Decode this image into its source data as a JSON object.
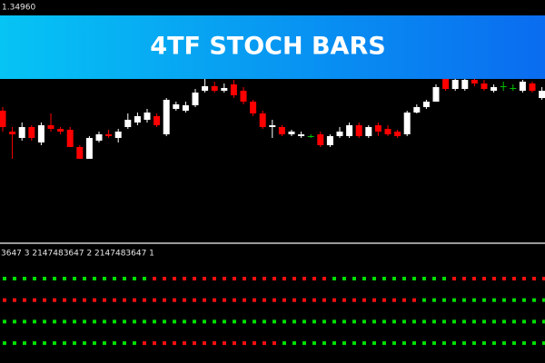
{
  "price_label": "1.34960",
  "indicator_label": "3647 3 2147483647 2 2147483647 1",
  "chart_data": [
    {
      "type": "candlestick",
      "title": "4TF STOCH BARS",
      "ylim": [
        1.3394,
        1.35
      ],
      "up_color": "#ffffff",
      "down_color": "#ff0000",
      "doji_color": "#00c000",
      "open": [
        1.34512,
        1.3442,
        1.34392,
        1.3444,
        1.34372,
        1.34448,
        1.34432,
        1.34428,
        1.34352,
        1.343,
        1.3438,
        1.34408,
        1.34392,
        1.3444,
        1.3446,
        1.34472,
        1.34488,
        1.34408,
        1.3452,
        1.34512,
        1.34536,
        1.346,
        1.3462,
        1.346,
        1.34628,
        1.346,
        1.34552,
        1.345,
        1.3444,
        1.3444,
        1.34408,
        1.344,
        1.344,
        1.34408,
        1.3436,
        1.344,
        1.344,
        1.34448,
        1.344,
        1.34448,
        1.34432,
        1.3442,
        1.34408,
        1.34504,
        1.34528,
        1.34552,
        1.34656,
        1.34608,
        1.34608,
        1.34648,
        1.34632,
        1.346,
        1.3462,
        1.34612,
        1.346,
        1.34632,
        1.34568
      ],
      "high": [
        1.34528,
        1.3444,
        1.3446,
        1.34448,
        1.3446,
        1.345,
        1.3444,
        1.3444,
        1.3436,
        1.344,
        1.3442,
        1.34428,
        1.34432,
        1.345,
        1.34504,
        1.3452,
        1.345,
        1.34568,
        1.34552,
        1.34552,
        1.34608,
        1.34656,
        1.3464,
        1.34632,
        1.34648,
        1.34616,
        1.3456,
        1.34512,
        1.34472,
        1.34448,
        1.34428,
        1.3442,
        1.34408,
        1.3442,
        1.34408,
        1.3444,
        1.3446,
        1.3446,
        1.34448,
        1.3446,
        1.34448,
        1.34428,
        1.34512,
        1.3454,
        1.3456,
        1.34628,
        1.34656,
        1.34656,
        1.34656,
        1.34656,
        1.34648,
        1.34628,
        1.3464,
        1.34628,
        1.34648,
        1.3464,
        1.34616
      ],
      "low": [
        1.3442,
        1.343,
        1.3438,
        1.3438,
        1.3436,
        1.3442,
        1.34408,
        1.34352,
        1.343,
        1.343,
        1.34372,
        1.34392,
        1.34372,
        1.34432,
        1.34448,
        1.3446,
        1.3444,
        1.344,
        1.34512,
        1.34504,
        1.34528,
        1.34592,
        1.34592,
        1.34592,
        1.34568,
        1.3454,
        1.34488,
        1.34432,
        1.34392,
        1.344,
        1.344,
        1.34392,
        1.34392,
        1.34352,
        1.34352,
        1.34392,
        1.34392,
        1.34392,
        1.34392,
        1.344,
        1.344,
        1.34392,
        1.344,
        1.345,
        1.3452,
        1.34552,
        1.346,
        1.346,
        1.346,
        1.3462,
        1.346,
        1.34592,
        1.346,
        1.346,
        1.34592,
        1.34592,
        1.3456
      ],
      "close": [
        1.3444,
        1.34408,
        1.3444,
        1.34392,
        1.34448,
        1.34432,
        1.3442,
        1.34352,
        1.343,
        1.34392,
        1.34408,
        1.344,
        1.3442,
        1.34472,
        1.34488,
        1.34504,
        1.34448,
        1.3456,
        1.3454,
        1.34536,
        1.34592,
        1.3462,
        1.346,
        1.34612,
        1.3458,
        1.34552,
        1.345,
        1.3444,
        1.34448,
        1.34408,
        1.3442,
        1.34408,
        1.344,
        1.3436,
        1.344,
        1.3442,
        1.34448,
        1.344,
        1.3444,
        1.3442,
        1.34408,
        1.344,
        1.34504,
        1.34528,
        1.34552,
        1.34616,
        1.34608,
        1.34648,
        1.34648,
        1.34632,
        1.34608,
        1.34616,
        1.3462,
        1.34612,
        1.3464,
        1.346,
        1.346
      ]
    },
    {
      "type": "signal-dots",
      "up_color": "#00e000",
      "down_color": "#ff1010",
      "series": [
        {
          "values": [
            1,
            1,
            1,
            1,
            1,
            1,
            1,
            1,
            1,
            1,
            1,
            1,
            1,
            1,
            1,
            -1,
            -1,
            -1,
            -1,
            -1,
            -1,
            -1,
            -1,
            -1,
            -1,
            -1,
            -1,
            -1,
            -1,
            -1,
            -1,
            -1,
            -1,
            1,
            1,
            1,
            1,
            1,
            1,
            1,
            1,
            1,
            1,
            1,
            1,
            -1,
            -1,
            -1,
            -1,
            -1,
            -1,
            -1,
            -1,
            -1,
            -1
          ]
        },
        {
          "values": [
            -1,
            -1,
            -1,
            -1,
            -1,
            -1,
            -1,
            -1,
            -1,
            -1,
            -1,
            -1,
            -1,
            -1,
            -1,
            -1,
            -1,
            -1,
            -1,
            -1,
            -1,
            -1,
            -1,
            -1,
            -1,
            -1,
            -1,
            -1,
            -1,
            -1,
            -1,
            -1,
            -1,
            -1,
            -1,
            -1,
            -1,
            -1,
            -1,
            -1,
            -1,
            -1,
            1,
            1,
            1,
            1,
            1,
            1,
            1,
            1,
            1,
            1,
            1,
            1,
            1
          ]
        },
        {
          "values": [
            1,
            1,
            1,
            1,
            1,
            1,
            1,
            1,
            1,
            1,
            1,
            1,
            1,
            1,
            1,
            1,
            1,
            1,
            1,
            1,
            1,
            1,
            1,
            1,
            1,
            1,
            1,
            1,
            1,
            1,
            1,
            1,
            1,
            1,
            1,
            1,
            1,
            1,
            1,
            1,
            1,
            1,
            1,
            1,
            1,
            1,
            1,
            1,
            1,
            1,
            1,
            1,
            1,
            1,
            1
          ]
        },
        {
          "values": [
            1,
            1,
            1,
            1,
            1,
            1,
            1,
            1,
            1,
            1,
            1,
            1,
            1,
            1,
            -1,
            -1,
            -1,
            -1,
            -1,
            -1,
            -1,
            -1,
            -1,
            -1,
            -1,
            -1,
            -1,
            -1,
            1,
            1,
            1,
            1,
            1,
            1,
            1,
            1,
            1,
            1,
            1,
            1,
            1,
            1,
            1,
            1,
            1,
            1,
            1,
            1,
            1,
            1,
            1,
            1,
            1,
            1,
            1
          ]
        }
      ]
    }
  ]
}
